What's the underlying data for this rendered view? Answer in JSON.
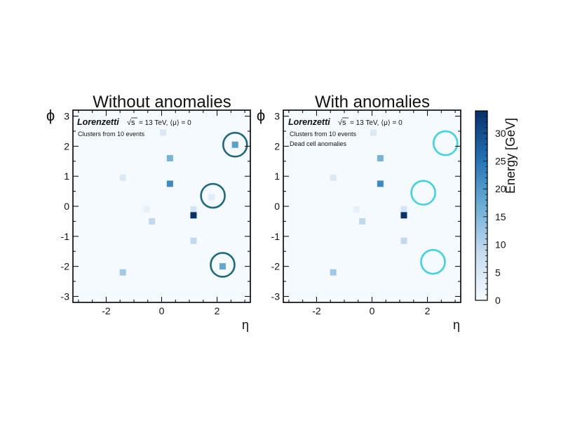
{
  "chart_data": [
    {
      "type": "heatmap",
      "title": "Without anomalies",
      "xlabel": "η",
      "ylabel": "ϕ",
      "xlim": [
        -3.2,
        3.2
      ],
      "ylim": [
        -3.2,
        3.2
      ],
      "xticks": [
        -2,
        0,
        2
      ],
      "yticks": [
        -3,
        -2,
        -1,
        0,
        1,
        2,
        3
      ],
      "legend": {
        "brand": "Lorenzetti",
        "energy": "= 13 TeV, ⟨μ⟩ = 0",
        "lines": [
          "Clusters from 10 events"
        ]
      },
      "cells": [
        {
          "eta": 0.05,
          "phi": 2.45,
          "energy": 5
        },
        {
          "eta": 2.65,
          "phi": 2.05,
          "energy": 19
        },
        {
          "eta": 0.3,
          "phi": 1.6,
          "energy": 16
        },
        {
          "eta": -1.4,
          "phi": 0.95,
          "energy": 5
        },
        {
          "eta": 0.3,
          "phi": 0.75,
          "energy": 22
        },
        {
          "eta": 1.8,
          "phi": 0.3,
          "energy": 4
        },
        {
          "eta": -0.55,
          "phi": -0.1,
          "energy": 3
        },
        {
          "eta": 1.15,
          "phi": -0.1,
          "energy": 6
        },
        {
          "eta": 1.15,
          "phi": -0.3,
          "energy": 34
        },
        {
          "eta": -0.35,
          "phi": -0.5,
          "energy": 9
        },
        {
          "eta": 1.15,
          "phi": -1.15,
          "energy": 9
        },
        {
          "eta": 2.2,
          "phi": -2.0,
          "energy": 18
        },
        {
          "eta": -1.4,
          "phi": -2.2,
          "energy": 12
        }
      ],
      "circles": [
        {
          "eta": 2.65,
          "phi": 2.05,
          "color": "#1d6a7c"
        },
        {
          "eta": 1.85,
          "phi": 0.35,
          "color": "#1d6a7c"
        },
        {
          "eta": 2.2,
          "phi": -1.95,
          "color": "#1d6a7c"
        }
      ]
    },
    {
      "type": "heatmap",
      "title": "With anomalies",
      "xlabel": "η",
      "ylabel": "ϕ",
      "xlim": [
        -3.2,
        3.2
      ],
      "ylim": [
        -3.2,
        3.2
      ],
      "xticks": [
        -2,
        0,
        2
      ],
      "yticks": [
        -3,
        -2,
        -1,
        0,
        1,
        2,
        3
      ],
      "legend": {
        "brand": "Lorenzetti",
        "energy": "= 13 TeV, ⟨μ⟩ = 0",
        "lines": [
          "Clusters from 10 events",
          "Dead cell anomalies"
        ]
      },
      "cells": [
        {
          "eta": 0.05,
          "phi": 2.45,
          "energy": 5
        },
        {
          "eta": 0.3,
          "phi": 1.6,
          "energy": 16
        },
        {
          "eta": -1.4,
          "phi": 0.95,
          "energy": 5
        },
        {
          "eta": 0.3,
          "phi": 0.75,
          "energy": 22
        },
        {
          "eta": -0.55,
          "phi": -0.1,
          "energy": 3
        },
        {
          "eta": 1.15,
          "phi": -0.1,
          "energy": 6
        },
        {
          "eta": 1.15,
          "phi": -0.3,
          "energy": 34
        },
        {
          "eta": -0.35,
          "phi": -0.5,
          "energy": 9
        },
        {
          "eta": 1.15,
          "phi": -1.15,
          "energy": 9
        },
        {
          "eta": -1.4,
          "phi": -2.2,
          "energy": 12
        }
      ],
      "circles": [
        {
          "eta": 2.65,
          "phi": 2.1,
          "color": "#3fd2e4"
        },
        {
          "eta": 1.85,
          "phi": 0.45,
          "color": "#3fd2e4"
        },
        {
          "eta": 2.2,
          "phi": -1.85,
          "color": "#3fd2e4"
        }
      ]
    }
  ],
  "colorbar": {
    "label": "Energy [GeV]",
    "min": 0,
    "max": 34,
    "ticks": [
      0,
      5,
      10,
      15,
      20,
      25,
      30
    ],
    "colors": [
      "#f7fbff",
      "#c6dbef",
      "#6baed6",
      "#2171b5",
      "#08306b"
    ]
  },
  "colors": {
    "background": "#f5faff",
    "frame": "#000000"
  }
}
